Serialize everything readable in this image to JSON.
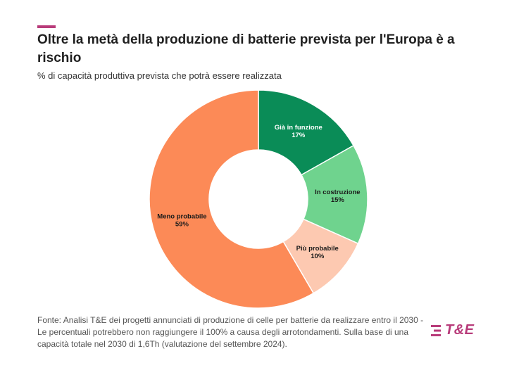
{
  "header": {
    "title": "Oltre la metà della produzione di batterie prevista per l'Europa è a rischio",
    "subtitle": "% di capacità produttiva prevista che potrà essere realizzata"
  },
  "chart_data": {
    "type": "pie",
    "donut": true,
    "unit": "%",
    "slices": [
      {
        "label": "Già in funzione",
        "value": 17,
        "value_label": "17%",
        "color": "#0a8c57"
      },
      {
        "label": "In costruzione",
        "value": 15,
        "value_label": "15%",
        "color": "#6fd38e"
      },
      {
        "label": "Più probabile",
        "value": 10,
        "value_label": "10%",
        "color": "#fdc9b1"
      },
      {
        "label": "Meno probabile",
        "value": 59,
        "value_label": "59%",
        "color": "#fc8a57"
      }
    ]
  },
  "footer": {
    "source": "Fonte: Analisi T&E dei progetti annunciati di produzione di celle per batterie da realizzare entro il 2030 - Le percentuali potrebbero non raggiungere il 100% a causa degli arrotondamenti. Sulla base di una capacità totale nel 2030 di 1,6Th (valutazione del settembre 2024).",
    "logo_text": "T&E",
    "brand_color": "#b83b7a"
  }
}
